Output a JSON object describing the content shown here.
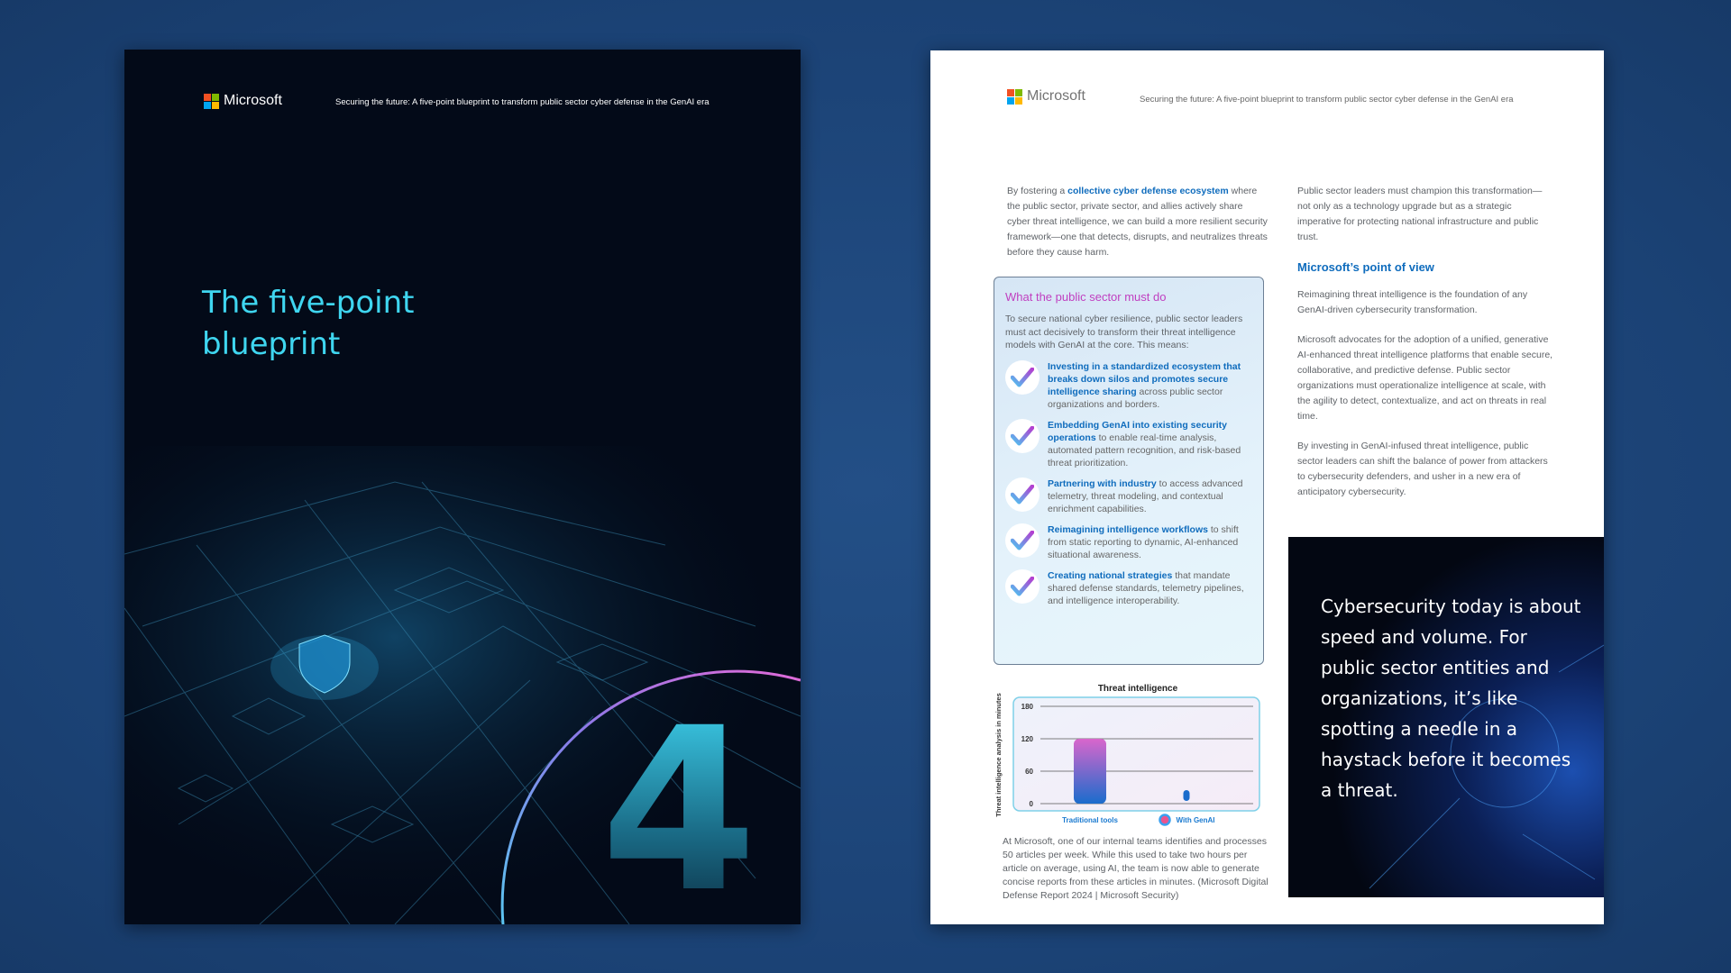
{
  "brand": "Microsoft",
  "header_title": "Securing the future: A five-point blueprint to transform public sector cyber defense in the GenAI era",
  "cover": {
    "title_line1": "The five-point",
    "title_line2": "blueprint",
    "chapter_number": "4",
    "accent": "#3fd6f0"
  },
  "intro": {
    "pre": "By fostering a ",
    "link": "collective cyber defense ecosystem",
    "post": " where the public sector, private sector, and allies actively share cyber threat intelligence, we can build a more resilient security framework—one that detects, disrupts, and neutralizes threats before they cause harm."
  },
  "callout": {
    "title": "What the public sector must do",
    "lead": "To secure national cyber resilience, public sector leaders must act decisively to transform their threat intelligence models with GenAI at the core. This means:",
    "items": [
      {
        "bold": "Investing in a standardized ecosystem that breaks down silos and promotes secure intelligence sharing",
        "rest": " across public sector organizations and borders."
      },
      {
        "bold": "Embedding GenAI into existing security operations",
        "rest": " to enable real-time analysis, automated pattern recognition, and risk-based threat prioritization."
      },
      {
        "bold": "Partnering with industry",
        "rest": " to access advanced telemetry, threat modeling, and contextual enrichment capabilities."
      },
      {
        "bold": "Reimagining intelligence workflows",
        "rest": " to shift from static reporting to dynamic, AI-enhanced situational awareness."
      },
      {
        "bold": "Creating national strategies",
        "rest": " that mandate shared defense standards, telemetry pipelines, and intelligence interoperability."
      }
    ]
  },
  "chart_data": {
    "type": "bar",
    "title": "Threat intelligence",
    "ylabel": "Threat intelligence analysis in minutes",
    "xlabel": "",
    "categories": [
      "Traditional tools",
      "With GenAI"
    ],
    "values": [
      120,
      25
    ],
    "ylim": [
      0,
      180
    ],
    "yticks": [
      0,
      60,
      120,
      180
    ],
    "grid": true
  },
  "footnote": "At Microsoft, one of our internal teams identifies and processes 50 articles per week. While this used to take two hours per article on average, using AI, the team is now able to generate concise reports from these articles in minutes. (Microsoft Digital Defense Report 2024 | Microsoft Security)",
  "right_col": {
    "p1": "Public sector leaders must champion this transformation—not only as a technology upgrade but as a strategic imperative for protecting national infrastructure and public trust.",
    "heading": "Microsoft’s point of view",
    "p2": "Reimagining threat intelligence is the foundation of any GenAI-driven cybersecurity transformation.",
    "p3": "Microsoft advocates for the adoption of a unified, generative AI-enhanced threat intelligence platforms that enable secure, collaborative, and predictive defense. Public sector organizations must operationalize intelligence at scale, with the agility to detect, contextualize, and act on threats in real time.",
    "p4": "By investing in GenAI-infused threat intelligence, public sector leaders can shift the balance of power from attackers to cybersecurity defenders, and usher in a new era of anticipatory cybersecurity."
  },
  "quote": "Cybersecurity today is about speed and volume. For public sector entities and organizations, it’s like spotting a needle in a haystack before it becomes a threat."
}
